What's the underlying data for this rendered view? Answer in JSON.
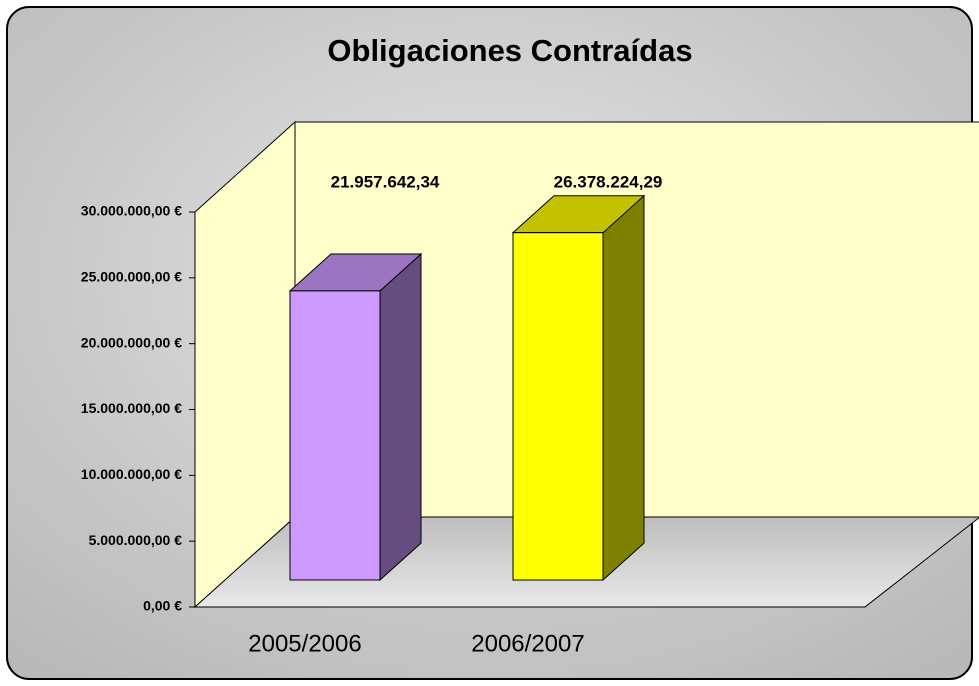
{
  "chart_data": {
    "type": "bar3d",
    "title": "Obligaciones Contraídas",
    "categories": [
      "2005/2006",
      "2006/2007"
    ],
    "values": [
      21957642.34,
      26378224.29
    ],
    "value_labels": [
      "21.957.642,34",
      "26.378.224,29"
    ],
    "colors": [
      "#cc99ff",
      "#ffff00"
    ],
    "ylim": [
      0,
      30000000
    ],
    "yticks": [
      {
        "value": 0,
        "label": "0,00 €"
      },
      {
        "value": 5000000,
        "label": "5.000.000,00 €"
      },
      {
        "value": 10000000,
        "label": "10.000.000,00 €"
      },
      {
        "value": 15000000,
        "label": "15.000.000,00 €"
      },
      {
        "value": 20000000,
        "label": "20.000.000,00 €"
      },
      {
        "value": 25000000,
        "label": "25.000.000,00 €"
      },
      {
        "value": 30000000,
        "label": "30.000.000,00 €"
      }
    ]
  }
}
